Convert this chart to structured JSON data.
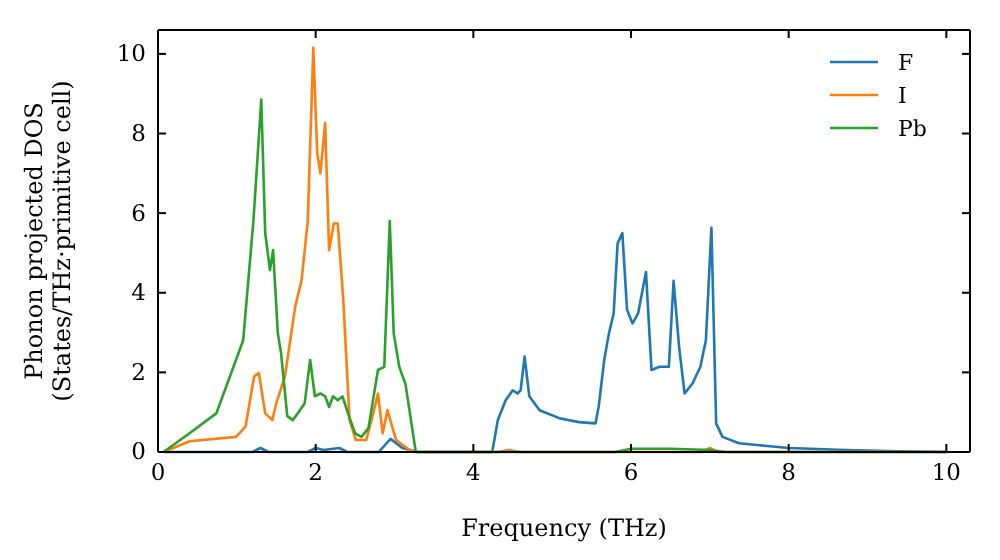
{
  "chart_data": {
    "type": "line",
    "xlabel": "Frequency (THz)",
    "ylabel": "Phonon projected DOS\n(States/THz·primitive cell)",
    "xlim": [
      0,
      10.3
    ],
    "ylim": [
      0,
      10.6
    ],
    "xticks": [
      0,
      2,
      4,
      6,
      8,
      10
    ],
    "yticks": [
      0,
      2,
      4,
      6,
      8,
      10
    ],
    "legend": "top right",
    "grid": false,
    "marker": "none",
    "line_style": "solid",
    "series": [
      {
        "name": "F",
        "color": "#1f77b4",
        "x": [
          0.07,
          1.2,
          1.3,
          1.4,
          1.9,
          2.0,
          2.1,
          2.3,
          2.4,
          2.8,
          2.95,
          3.1,
          3.3,
          4.24,
          4.31,
          4.41,
          4.5,
          4.56,
          4.6,
          4.65,
          4.71,
          4.84,
          5.09,
          5.34,
          5.55,
          5.59,
          5.66,
          5.72,
          5.78,
          5.83,
          5.89,
          5.95,
          6.02,
          6.09,
          6.19,
          6.26,
          6.36,
          6.48,
          6.54,
          6.61,
          6.68,
          6.78,
          6.88,
          6.95,
          7.02,
          7.08,
          7.16,
          7.37,
          7.63,
          8.0,
          8.72,
          9.4,
          10.0
        ],
        "values": [
          0,
          0,
          0.1,
          0,
          0,
          0.1,
          0.05,
          0.1,
          0,
          0,
          0.33,
          0.1,
          0,
          0,
          0.8,
          1.3,
          1.55,
          1.47,
          1.55,
          2.4,
          1.4,
          1.05,
          0.85,
          0.75,
          0.72,
          1.14,
          2.31,
          2.98,
          3.48,
          5.24,
          5.5,
          3.57,
          3.23,
          3.48,
          4.52,
          2.06,
          2.14,
          2.14,
          4.3,
          2.64,
          1.47,
          1.72,
          2.14,
          2.81,
          5.63,
          0.72,
          0.38,
          0.22,
          0.17,
          0.1,
          0.05,
          0.02,
          0
        ]
      },
      {
        "name": "I",
        "color": "#ff7f0e",
        "x": [
          0.07,
          0.4,
          0.99,
          1.11,
          1.22,
          1.28,
          1.36,
          1.45,
          1.5,
          1.61,
          1.74,
          1.82,
          1.9,
          1.97,
          2.02,
          2.06,
          2.12,
          2.17,
          2.23,
          2.28,
          2.35,
          2.43,
          2.51,
          2.64,
          2.73,
          2.79,
          2.85,
          2.91,
          3.02,
          3.19,
          3.27,
          4.3,
          4.45,
          4.6,
          6.9,
          7.0,
          7.1,
          10.0
        ],
        "values": [
          0,
          0.27,
          0.38,
          0.64,
          1.9,
          1.98,
          0.97,
          0.8,
          1.22,
          1.9,
          3.65,
          4.3,
          5.8,
          10.15,
          7.5,
          7.0,
          8.26,
          5.07,
          5.74,
          5.74,
          3.82,
          0.8,
          0.3,
          0.3,
          0.97,
          1.47,
          0.47,
          1.05,
          0.3,
          0.05,
          0,
          0,
          0.05,
          0,
          0,
          0.1,
          0,
          0
        ]
      },
      {
        "name": "Pb",
        "color": "#2ca02c",
        "x": [
          0.07,
          0.4,
          0.74,
          1.08,
          1.21,
          1.31,
          1.36,
          1.42,
          1.46,
          1.52,
          1.56,
          1.64,
          1.71,
          1.86,
          1.93,
          1.99,
          2.06,
          2.12,
          2.17,
          2.22,
          2.28,
          2.34,
          2.41,
          2.5,
          2.58,
          2.67,
          2.79,
          2.87,
          2.94,
          2.99,
          3.06,
          3.14,
          3.27,
          5.8,
          6.0,
          6.5,
          7.0,
          7.2,
          10.0
        ],
        "values": [
          0,
          0.47,
          0.97,
          2.8,
          5.8,
          8.85,
          5.5,
          4.57,
          5.07,
          2.98,
          2.5,
          0.9,
          0.8,
          1.22,
          2.31,
          1.4,
          1.47,
          1.4,
          1.13,
          1.4,
          1.3,
          1.4,
          0.97,
          0.47,
          0.38,
          0.6,
          2.06,
          2.14,
          5.8,
          2.98,
          2.14,
          1.7,
          0,
          0,
          0.08,
          0.08,
          0.05,
          0,
          0
        ]
      }
    ]
  }
}
